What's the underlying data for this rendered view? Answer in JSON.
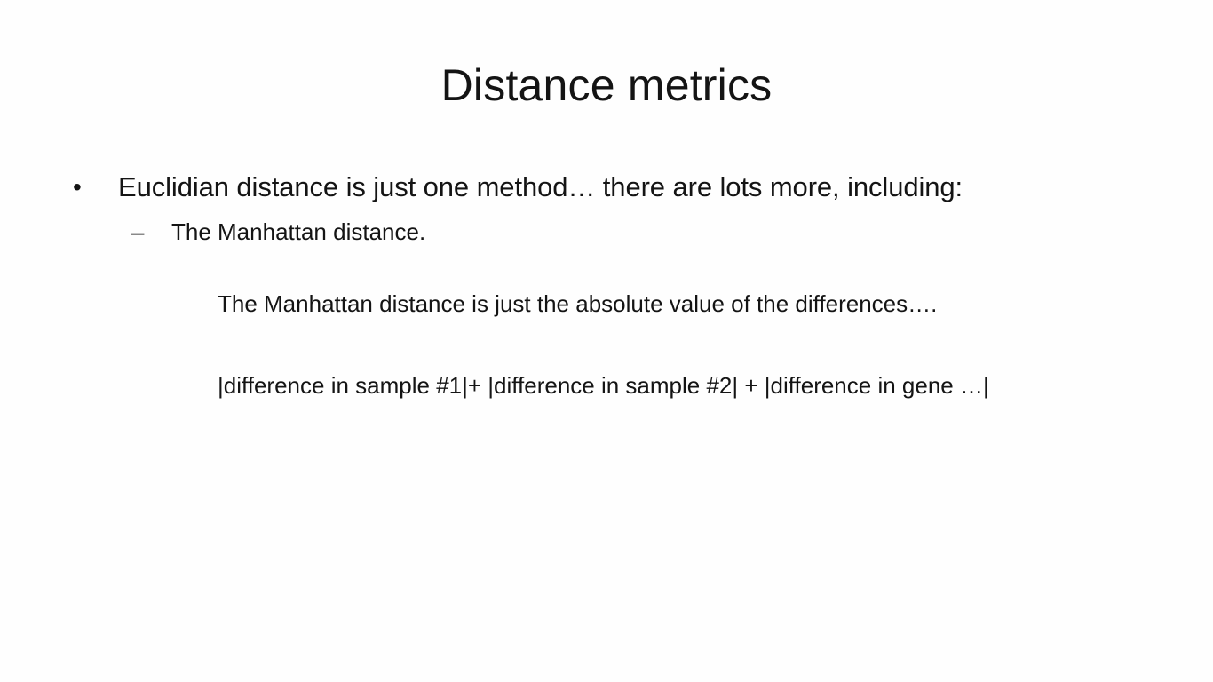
{
  "slide": {
    "title": "Distance metrics",
    "bullet": {
      "glyph": "•",
      "text": "Euclidian distance is just one method… there are lots more, including:"
    },
    "sub_bullet": {
      "glyph": "–",
      "text": "The Manhattan distance."
    },
    "explanation": "The Manhattan distance is just the absolute value of the differences….",
    "formula": "|difference in sample #1|+ |difference in sample #2| + |difference in gene …|"
  }
}
